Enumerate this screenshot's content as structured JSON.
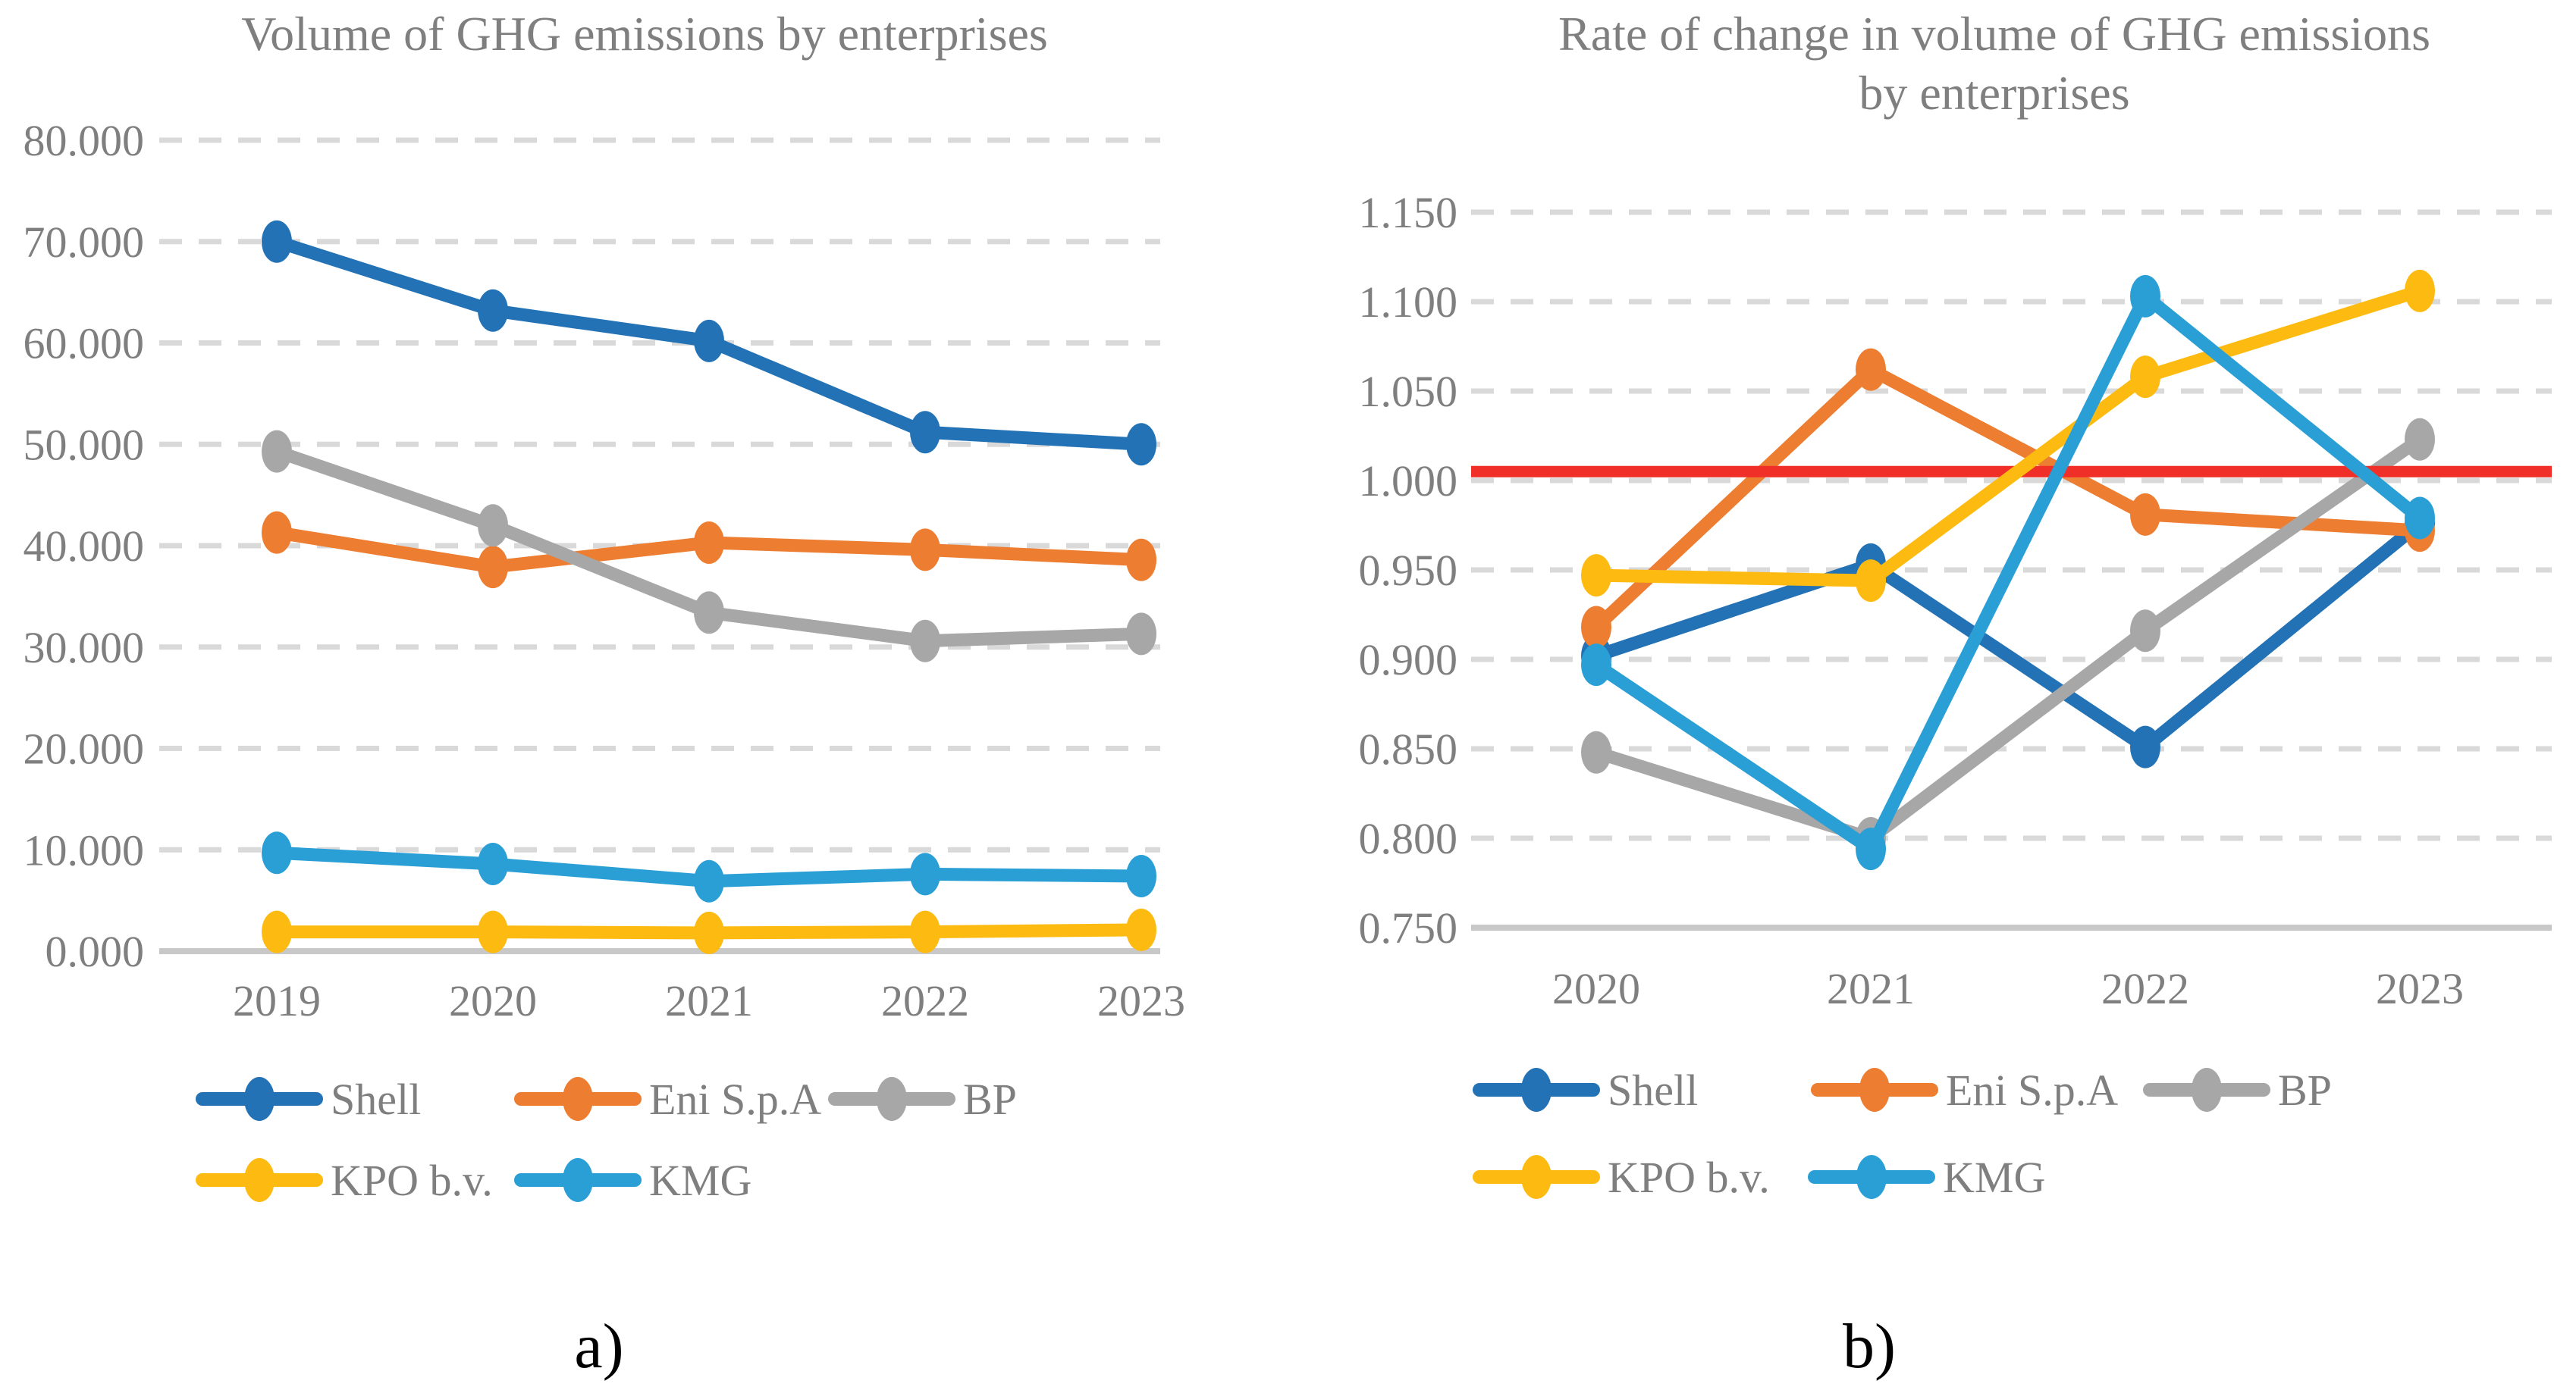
{
  "figure": {
    "background": "#FFFFFF",
    "text_color": "#7F7F7F",
    "grid_color": "#D9D9D9",
    "axis_color": "#C8C8C8",
    "caption_color": "#000000"
  },
  "chart_data": [
    {
      "id": "ghg-volume",
      "type": "line",
      "title": "Volume of GHG emissions by enterprises",
      "caption": "a)",
      "grid": true,
      "legend_position": "bottom",
      "x_axis": {
        "categories": [
          "2019",
          "2020",
          "2021",
          "2022",
          "2023"
        ]
      },
      "y_axis": {
        "labels": [
          "80.000",
          "70.000",
          "60.000",
          "50.000",
          "40.000",
          "30.000",
          "20.000",
          "10.000",
          "0.000"
        ],
        "values": [
          80,
          70,
          60,
          50,
          40,
          30,
          20,
          10,
          0
        ]
      },
      "ylim": [
        0,
        80
      ],
      "series": [
        {
          "name": "Shell",
          "color": "#2272B5",
          "values": [
            70.0,
            63.2,
            60.2,
            51.2,
            50.0
          ]
        },
        {
          "name": "Eni S.p.A",
          "color": "#ED7D31",
          "values": [
            41.3,
            37.9,
            40.3,
            39.6,
            38.6
          ]
        },
        {
          "name": "BP",
          "color": "#A7A7A7",
          "values": [
            49.3,
            42.0,
            33.4,
            30.6,
            31.3
          ]
        },
        {
          "name": "KPO b.v.",
          "color": "#FDBB12",
          "values": [
            1.9,
            1.9,
            1.8,
            1.9,
            2.1
          ]
        },
        {
          "name": "KMG",
          "color": "#2A9FD6",
          "values": [
            9.7,
            8.6,
            6.9,
            7.6,
            7.4
          ]
        }
      ]
    },
    {
      "id": "ghg-rate-of-change",
      "type": "line",
      "title": "Rate of change in volume of GHG emissions by enterprises",
      "title_line1": "Rate of change in volume of GHG emissions",
      "title_line2": "by enterprises",
      "caption": "b)",
      "grid": true,
      "legend_position": "bottom",
      "x_axis": {
        "categories": [
          "2020",
          "2021",
          "2022",
          "2023"
        ]
      },
      "y_axis": {
        "labels": [
          "1.150",
          "1.100",
          "1.050",
          "1.000",
          "0.950",
          "0.900",
          "0.850",
          "0.800",
          "0.750"
        ],
        "values": [
          1.15,
          1.1,
          1.05,
          1.0,
          0.95,
          0.9,
          0.85,
          0.8,
          0.75
        ]
      },
      "ylim": [
        0.75,
        1.15
      ],
      "reference_line": {
        "value": 1.005,
        "color": "#F03028",
        "draw_after_series_index": 2
      },
      "series": [
        {
          "name": "Shell",
          "color": "#2272B5",
          "values": [
            0.902,
            0.953,
            0.851,
            0.976
          ]
        },
        {
          "name": "Eni S.p.A",
          "color": "#ED7D31",
          "values": [
            0.918,
            1.062,
            0.981,
            0.972
          ]
        },
        {
          "name": "BP",
          "color": "#A7A7A7",
          "values": [
            0.848,
            0.8,
            0.916,
            1.023
          ]
        },
        {
          "name": "KPO b.v.",
          "color": "#FDBB12",
          "values": [
            0.947,
            0.944,
            1.058,
            1.106
          ]
        },
        {
          "name": "KMG",
          "color": "#2A9FD6",
          "values": [
            0.897,
            0.794,
            1.103,
            0.979
          ]
        }
      ]
    }
  ]
}
